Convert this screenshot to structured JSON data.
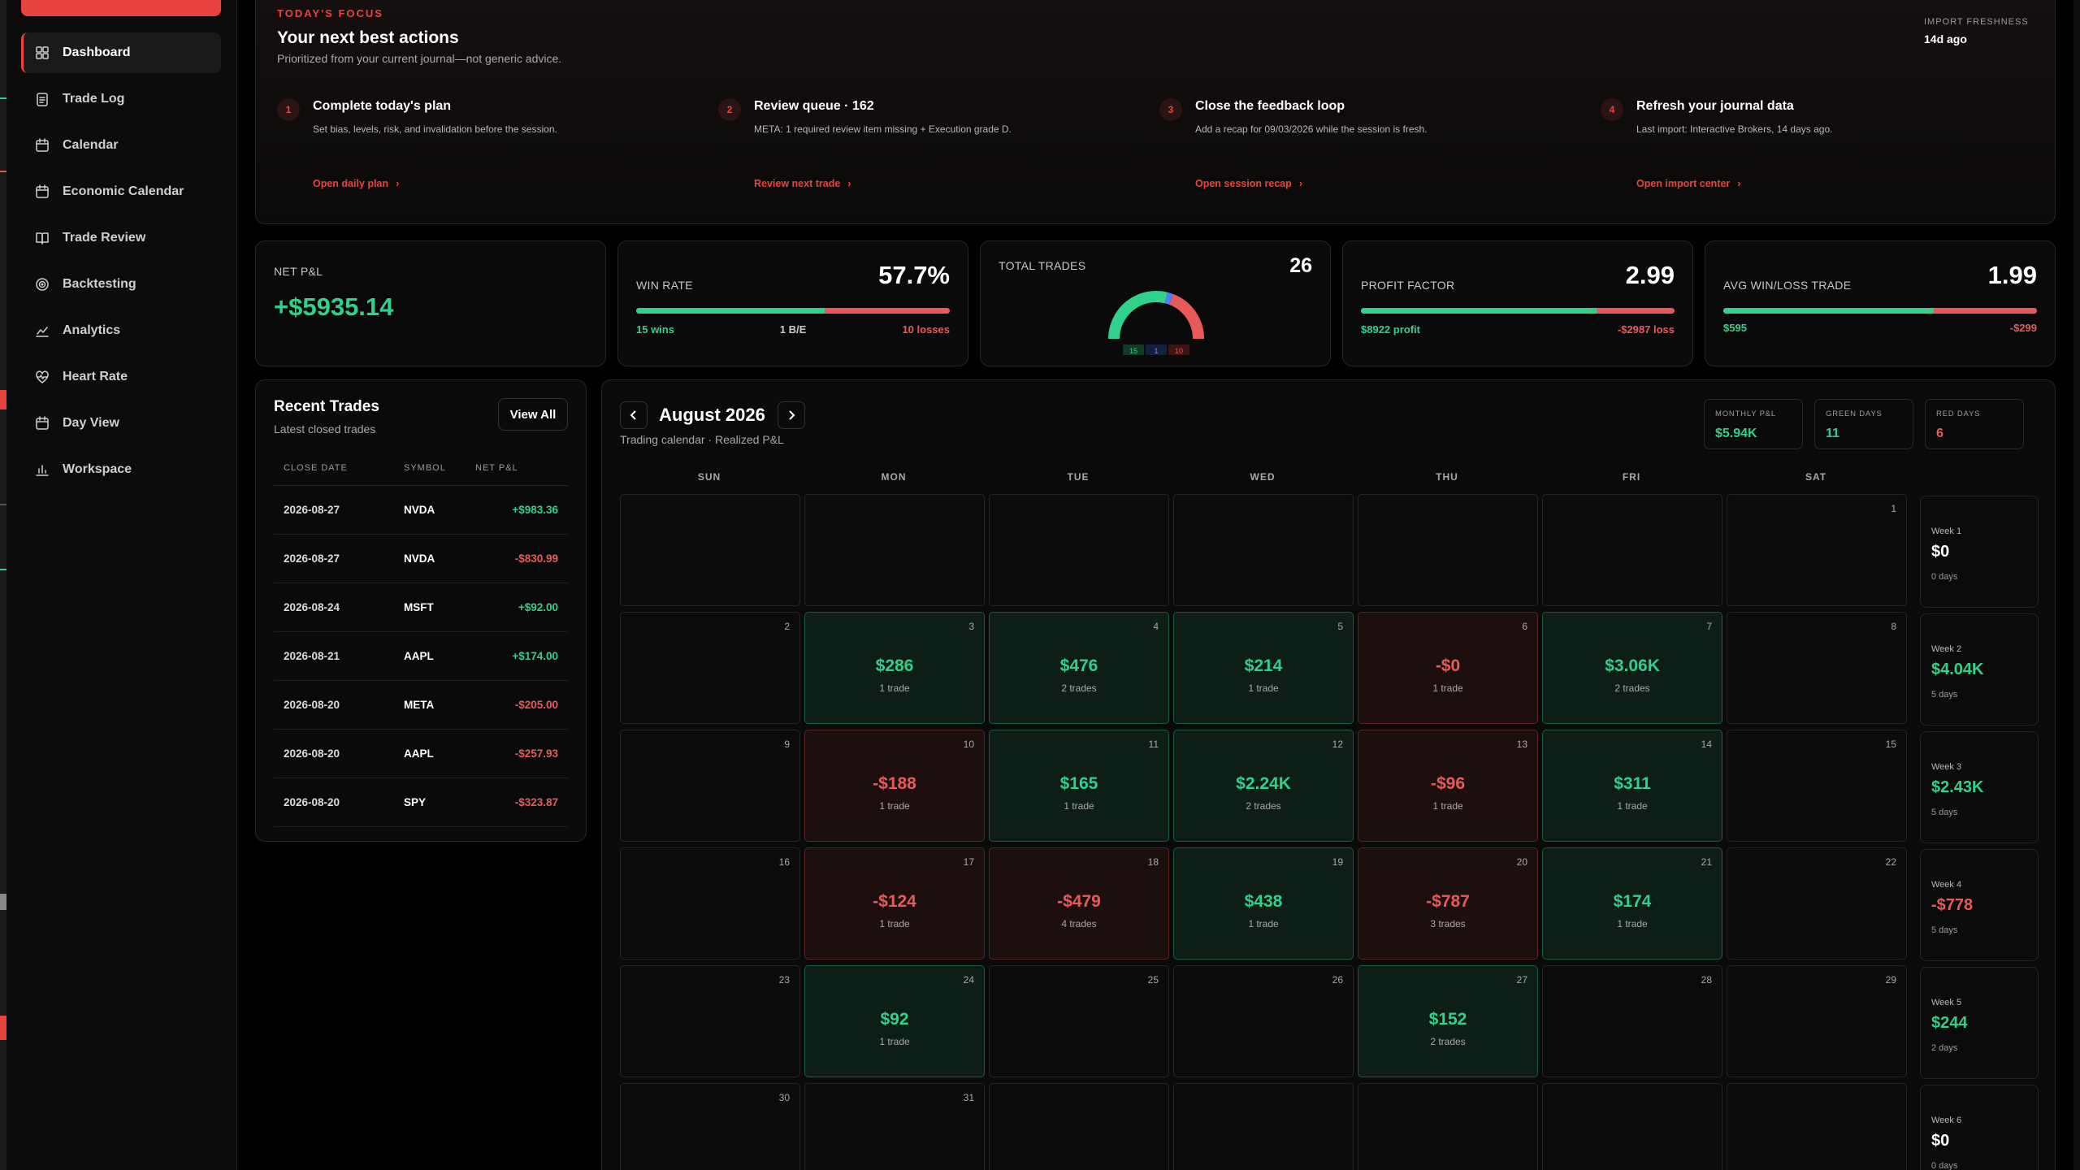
{
  "colors": {
    "accent": "#e8433e",
    "positive": "#2fd18b",
    "negative": "#e85a5a"
  },
  "sidebar": {
    "items": [
      {
        "label": "Dashboard",
        "icon": "grid-icon",
        "active": true
      },
      {
        "label": "Trade Log",
        "icon": "clipboard-icon"
      },
      {
        "label": "Calendar",
        "icon": "calendar-icon"
      },
      {
        "label": "Economic Calendar",
        "icon": "calendar-icon"
      },
      {
        "label": "Trade Review",
        "icon": "book-icon"
      },
      {
        "label": "Backtesting",
        "icon": "target-icon"
      },
      {
        "label": "Analytics",
        "icon": "line-chart-icon"
      },
      {
        "label": "Heart Rate",
        "icon": "heart-pulse-icon"
      },
      {
        "label": "Day View",
        "icon": "calendar-icon"
      },
      {
        "label": "Workspace",
        "icon": "bar-chart-icon"
      }
    ]
  },
  "focus": {
    "kicker": "TODAY'S FOCUS",
    "title": "Your next best actions",
    "subtitle": "Prioritized from your current journal—not generic advice.",
    "freshness_label": "IMPORT FRESHNESS",
    "freshness_value": "14d ago",
    "actions": [
      {
        "num": "1",
        "title": "Complete today's plan",
        "desc": "Set bias, levels, risk, and invalidation before the session.",
        "link": "Open daily plan"
      },
      {
        "num": "2",
        "title": "Review queue · 162",
        "desc": "META: 1 required review item missing + Execution grade D.",
        "link": "Review next trade"
      },
      {
        "num": "3",
        "title": "Close the feedback loop",
        "desc": "Add a recap for 09/03/2026 while the session is fresh.",
        "link": "Open session recap"
      },
      {
        "num": "4",
        "title": "Refresh your journal data",
        "desc": "Last import: Interactive Brokers, 14 days ago.",
        "link": "Open import center"
      }
    ]
  },
  "stats": {
    "net_pnl": {
      "label": "NET P&L",
      "value": "+$5935.14"
    },
    "win_rate": {
      "label": "WIN RATE",
      "value": "57.7%",
      "fraction": 0.6,
      "wins": "15 wins",
      "breakeven": "1 B/E",
      "losses": "10 losses"
    },
    "total_trades": {
      "label": "TOTAL TRADES",
      "value": "26",
      "wins": 15,
      "breakeven": 1,
      "losses": 10,
      "wins_label": "15",
      "be_label": "1",
      "losses_label": "10"
    },
    "profit_factor": {
      "label": "PROFIT FACTOR",
      "value": "2.99",
      "fraction": 0.75,
      "profit": "$8922 profit",
      "loss": "-$2987 loss"
    },
    "avg_win_loss": {
      "label": "AVG WIN/LOSS TRADE",
      "value": "1.99",
      "fraction": 0.67,
      "win": "$595",
      "loss": "-$299"
    }
  },
  "recent": {
    "title": "Recent Trades",
    "subtitle": "Latest closed trades",
    "view_all": "View All",
    "columns": [
      "CLOSE DATE",
      "SYMBOL",
      "NET P&L"
    ],
    "rows": [
      {
        "date": "2026-08-27",
        "symbol": "NVDA",
        "pnl": "+$983.36",
        "dir": "pos"
      },
      {
        "date": "2026-08-27",
        "symbol": "NVDA",
        "pnl": "-$830.99",
        "dir": "neg"
      },
      {
        "date": "2026-08-24",
        "symbol": "MSFT",
        "pnl": "+$92.00",
        "dir": "pos"
      },
      {
        "date": "2026-08-21",
        "symbol": "AAPL",
        "pnl": "+$174.00",
        "dir": "pos"
      },
      {
        "date": "2026-08-20",
        "symbol": "META",
        "pnl": "-$205.00",
        "dir": "neg"
      },
      {
        "date": "2026-08-20",
        "symbol": "AAPL",
        "pnl": "-$257.93",
        "dir": "neg"
      },
      {
        "date": "2026-08-20",
        "symbol": "SPY",
        "pnl": "-$323.87",
        "dir": "neg"
      }
    ]
  },
  "calendar": {
    "title": "August 2026",
    "subtitle": "Trading calendar · Realized P&L",
    "prev_icon": "chevron-left-icon",
    "next_icon": "chevron-right-icon",
    "kpis": [
      {
        "label": "MONTHLY P&L",
        "value": "$5.94K",
        "dir": "pos"
      },
      {
        "label": "GREEN DAYS",
        "value": "11",
        "dir": "pos"
      },
      {
        "label": "RED DAYS",
        "value": "6",
        "dir": "neg"
      }
    ],
    "dows": [
      "SUN",
      "MON",
      "TUE",
      "WED",
      "THU",
      "FRI",
      "SAT"
    ],
    "weeks": [
      {
        "days": [
          null,
          null,
          null,
          null,
          null,
          null,
          {
            "n": "1"
          }
        ],
        "label": "Week 1",
        "total": "$0",
        "count": "0 days",
        "dir": "zero"
      },
      {
        "days": [
          {
            "n": "2"
          },
          {
            "n": "3",
            "v": "$286",
            "t": "1 trade",
            "dir": "pos"
          },
          {
            "n": "4",
            "v": "$476",
            "t": "2 trades",
            "dir": "pos"
          },
          {
            "n": "5",
            "v": "$214",
            "t": "1 trade",
            "dir": "pos"
          },
          {
            "n": "6",
            "v": "-$0",
            "t": "1 trade",
            "dir": "neg"
          },
          {
            "n": "7",
            "v": "$3.06K",
            "t": "2 trades",
            "dir": "pos"
          },
          {
            "n": "8"
          }
        ],
        "label": "Week 2",
        "total": "$4.04K",
        "count": "5 days",
        "dir": "pos"
      },
      {
        "days": [
          {
            "n": "9"
          },
          {
            "n": "10",
            "v": "-$188",
            "t": "1 trade",
            "dir": "neg"
          },
          {
            "n": "11",
            "v": "$165",
            "t": "1 trade",
            "dir": "pos"
          },
          {
            "n": "12",
            "v": "$2.24K",
            "t": "2 trades",
            "dir": "pos"
          },
          {
            "n": "13",
            "v": "-$96",
            "t": "1 trade",
            "dir": "neg"
          },
          {
            "n": "14",
            "v": "$311",
            "t": "1 trade",
            "dir": "pos"
          },
          {
            "n": "15"
          }
        ],
        "label": "Week 3",
        "total": "$2.43K",
        "count": "5 days",
        "dir": "pos"
      },
      {
        "days": [
          {
            "n": "16"
          },
          {
            "n": "17",
            "v": "-$124",
            "t": "1 trade",
            "dir": "neg"
          },
          {
            "n": "18",
            "v": "-$479",
            "t": "4 trades",
            "dir": "neg"
          },
          {
            "n": "19",
            "v": "$438",
            "t": "1 trade",
            "dir": "pos"
          },
          {
            "n": "20",
            "v": "-$787",
            "t": "3 trades",
            "dir": "neg"
          },
          {
            "n": "21",
            "v": "$174",
            "t": "1 trade",
            "dir": "pos"
          },
          {
            "n": "22"
          }
        ],
        "label": "Week 4",
        "total": "-$778",
        "count": "5 days",
        "dir": "neg"
      },
      {
        "days": [
          {
            "n": "23"
          },
          {
            "n": "24",
            "v": "$92",
            "t": "1 trade",
            "dir": "pos"
          },
          {
            "n": "25"
          },
          {
            "n": "26"
          },
          {
            "n": "27",
            "v": "$152",
            "t": "2 trades",
            "dir": "pos"
          },
          {
            "n": "28"
          },
          {
            "n": "29"
          }
        ],
        "label": "Week 5",
        "total": "$244",
        "count": "2 days",
        "dir": "pos"
      },
      {
        "days": [
          {
            "n": "30"
          },
          {
            "n": "31"
          },
          null,
          null,
          null,
          null,
          null
        ],
        "label": "Week 6",
        "total": "$0",
        "count": "0 days",
        "dir": "zero"
      }
    ]
  }
}
